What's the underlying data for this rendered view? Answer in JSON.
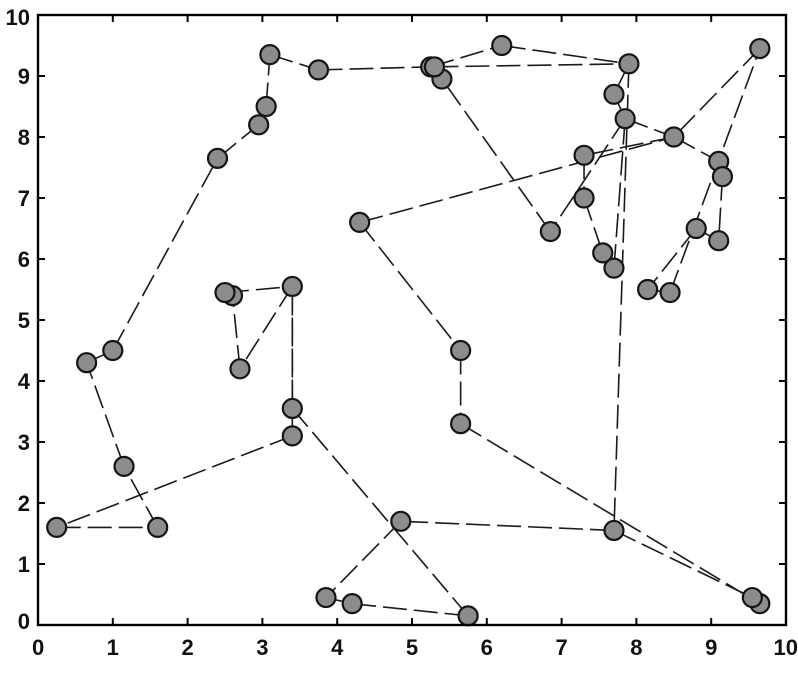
{
  "chart_data": {
    "type": "line",
    "title": "",
    "xlabel": "",
    "ylabel": "",
    "xlim": [
      0,
      10
    ],
    "ylim": [
      0,
      10
    ],
    "x_ticks": [
      "0",
      "1",
      "2",
      "3",
      "4",
      "5",
      "6",
      "7",
      "8",
      "9",
      "10"
    ],
    "y_ticks": [
      "0",
      "1",
      "2",
      "3",
      "4",
      "5",
      "6",
      "7",
      "8",
      "9",
      "10"
    ],
    "grid": false,
    "legend": "none",
    "marker_color": "#8c8c8c",
    "line_color": "#1a1a1a",
    "line_style": "dashed",
    "series": [
      {
        "x": [
          0.25,
          1.6,
          1.15,
          0.65,
          1.0,
          2.4,
          2.95,
          3.05,
          3.1,
          3.75,
          5.25,
          6.2,
          7.9,
          7.7,
          7.85,
          8.5,
          9.1,
          9.15,
          9.1,
          8.8,
          8.15,
          8.45,
          9.65,
          8.5,
          7.3,
          7.3,
          7.55,
          7.7,
          7.85,
          6.85,
          5.4,
          5.3,
          7.9,
          7.7,
          4.85,
          3.85,
          4.2,
          5.75,
          3.4,
          3.4,
          2.7,
          2.6,
          2.5,
          3.4,
          3.4,
          0.25
        ],
        "y": [
          1.6,
          1.6,
          2.6,
          4.3,
          4.5,
          7.65,
          8.2,
          8.5,
          9.35,
          9.1,
          9.15,
          9.5,
          9.2,
          8.7,
          8.3,
          8.0,
          7.6,
          7.35,
          6.3,
          6.5,
          5.5,
          5.45,
          9.45,
          8.0,
          7.7,
          7.0,
          6.1,
          5.85,
          8.3,
          6.45,
          8.95,
          9.15,
          9.2,
          1.55,
          1.7,
          0.45,
          0.35,
          0.15,
          3.55,
          5.55,
          4.2,
          5.4,
          5.45,
          5.55,
          3.1,
          1.6
        ]
      },
      {
        "x": [
          4.3,
          8.5
        ],
        "y": [
          6.6,
          8.0
        ]
      },
      {
        "x": [
          4.3,
          5.65,
          5.65,
          9.65
        ],
        "y": [
          6.6,
          4.5,
          3.3,
          0.35
        ]
      },
      {
        "x": [
          7.7,
          9.55
        ],
        "y": [
          1.55,
          0.45
        ]
      }
    ]
  }
}
